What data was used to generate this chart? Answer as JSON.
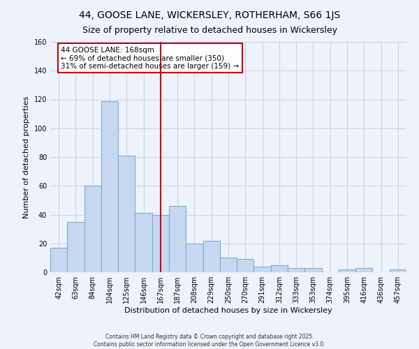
{
  "title": "44, GOOSE LANE, WICKERSLEY, ROTHERHAM, S66 1JS",
  "subtitle": "Size of property relative to detached houses in Wickersley",
  "xlabel": "Distribution of detached houses by size in Wickersley",
  "ylabel": "Number of detached properties",
  "bar_labels": [
    "42sqm",
    "63sqm",
    "84sqm",
    "104sqm",
    "125sqm",
    "146sqm",
    "167sqm",
    "187sqm",
    "208sqm",
    "229sqm",
    "250sqm",
    "270sqm",
    "291sqm",
    "312sqm",
    "333sqm",
    "353sqm",
    "374sqm",
    "395sqm",
    "416sqm",
    "436sqm",
    "457sqm"
  ],
  "bar_values": [
    17,
    35,
    60,
    119,
    81,
    41,
    40,
    46,
    20,
    22,
    10,
    9,
    4,
    5,
    3,
    3,
    0,
    2,
    3,
    0,
    2
  ],
  "bar_color": "#c5d8f0",
  "bar_edge_color": "#7aadcf",
  "vline_x": 6,
  "vline_color": "#cc0000",
  "annotation_text": "44 GOOSE LANE: 168sqm\n← 69% of detached houses are smaller (350)\n31% of semi-detached houses are larger (159) →",
  "annotation_box_color": "#ffffff",
  "annotation_box_edge": "#cc0000",
  "ylim": [
    0,
    160
  ],
  "yticks": [
    0,
    20,
    40,
    60,
    80,
    100,
    120,
    140,
    160
  ],
  "grid_color": "#c8d4e8",
  "background_color": "#eef2fa",
  "footer_line1": "Contains HM Land Registry data © Crown copyright and database right 2025.",
  "footer_line2": "Contains public sector information licensed under the Open Government Licence v3.0.",
  "title_fontsize": 10,
  "subtitle_fontsize": 9,
  "axis_label_fontsize": 8,
  "tick_fontsize": 7,
  "footer_fontsize": 5.5,
  "annotation_fontsize": 7.5
}
